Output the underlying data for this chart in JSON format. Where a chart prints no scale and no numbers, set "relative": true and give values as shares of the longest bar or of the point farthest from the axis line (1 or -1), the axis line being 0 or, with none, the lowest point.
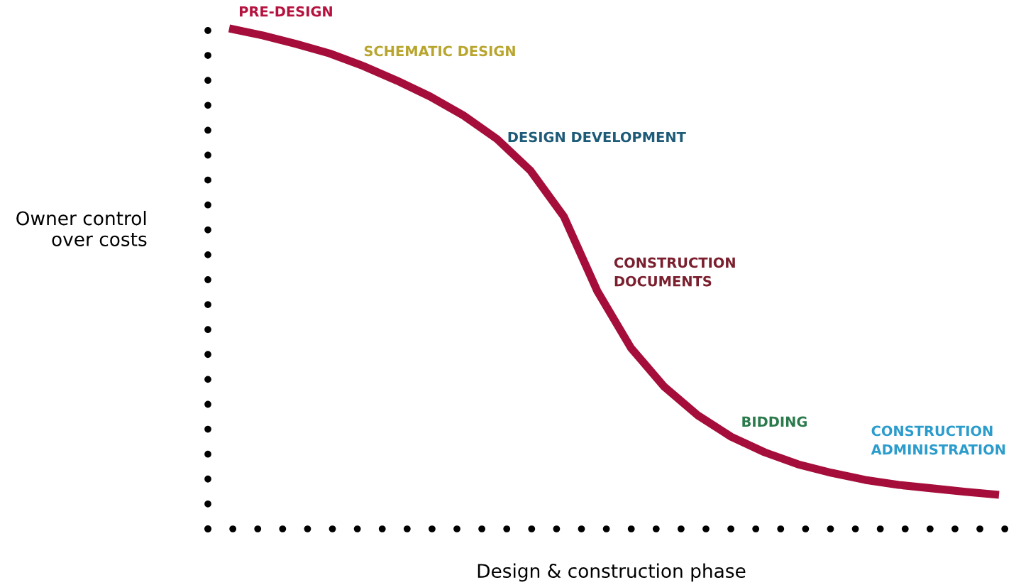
{
  "chart_data": {
    "type": "line",
    "relative": true,
    "xlabel": "Design & construction phase",
    "ylabel": "Owner control\nover costs",
    "categories": [
      null,
      null,
      null,
      null,
      null,
      null,
      null,
      null,
      null,
      null,
      null,
      null,
      null,
      null,
      null,
      null,
      null,
      null,
      null,
      null,
      null,
      null,
      null,
      null
    ],
    "series": [
      {
        "color": "#a50d3a",
        "values": [
          1.0,
          0.986,
          0.969,
          0.95,
          0.925,
          0.896,
          0.864,
          0.826,
          0.779,
          0.716,
          0.624,
          0.475,
          0.362,
          0.284,
          0.227,
          0.184,
          0.153,
          0.129,
          0.112,
          0.098,
          0.088,
          0.081,
          0.074,
          0.068
        ]
      }
    ],
    "annotations": [
      "PRE-DESIGN",
      "SCHEMATIC DESIGN",
      "DESIGN DEVELOPMENT",
      "CONSTRUCTION\nDOCUMENTS",
      "BIDDING",
      "CONSTRUCTION\nADMINISTRATION"
    ],
    "legend": false,
    "marker": "none",
    "line_style": "solid"
  }
}
